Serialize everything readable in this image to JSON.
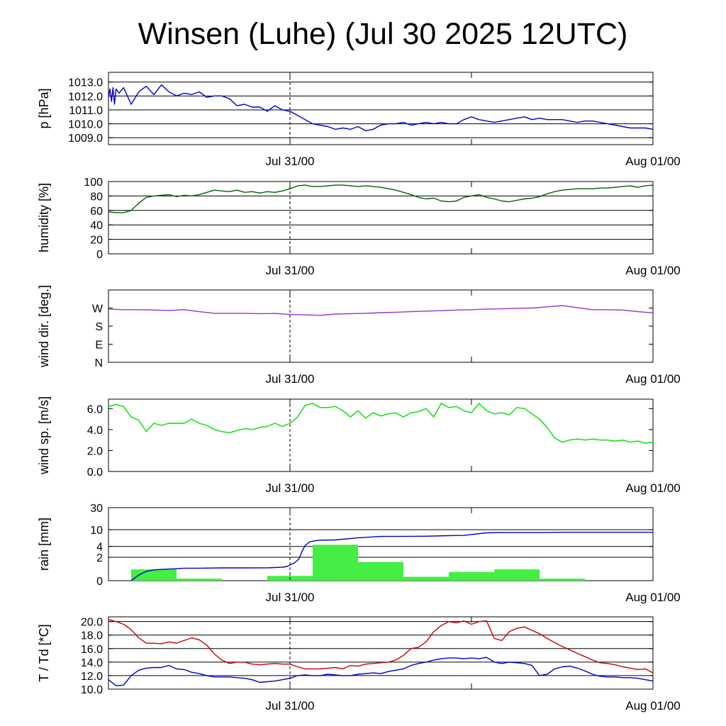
{
  "title": "Winsen (Luhe) (Jul 30 2025 12UTC)",
  "time_axis": {
    "range_hours": [
      0,
      36
    ],
    "ticks": [
      {
        "hour": 12,
        "label": "Jul 31/00"
      },
      {
        "hour": 36,
        "label": "Aug 01/00"
      }
    ],
    "minor_ticks_hours": [
      24
    ],
    "marker_hour": 12
  },
  "chart_data": [
    {
      "type": "line",
      "ylabel": "p [hPa]",
      "ylim": [
        1008.5,
        1013.7
      ],
      "yticks": [
        1009.0,
        1010.0,
        1011.0,
        1012.0,
        1013.0
      ],
      "ytick_labels": [
        "1009.0",
        "1010.0",
        "1011.0",
        "1012.0",
        "1013.0"
      ],
      "grid": true,
      "series": [
        {
          "color": "#0000cc",
          "x": [
            0,
            0.1,
            0.2,
            0.3,
            0.4,
            0.5,
            0.7,
            1.0,
            1.5,
            2.0,
            2.5,
            3.0,
            3.5,
            4.0,
            4.5,
            5.0,
            5.5,
            6.0,
            6.5,
            7.0,
            7.5,
            8.0,
            8.5,
            9.0,
            9.5,
            10.0,
            10.5,
            11.0,
            11.5,
            12.0,
            12.5,
            13.0,
            13.5,
            14.0,
            14.5,
            15.0,
            15.5,
            16.0,
            16.5,
            17.0,
            17.5,
            18.0,
            18.5,
            19.0,
            19.5,
            20.0,
            20.5,
            21.0,
            21.5,
            22.0,
            22.5,
            23.0,
            23.5,
            24.0,
            24.5,
            25.0,
            25.5,
            26.0,
            26.5,
            27.0,
            27.5,
            28.0,
            28.5,
            29.0,
            29.5,
            30.0,
            30.5,
            31.0,
            31.5,
            32.0,
            32.5,
            33.0,
            33.5,
            34.0,
            34.5,
            35.0,
            35.5,
            36.0
          ],
          "y": [
            1011.9,
            1012.5,
            1011.6,
            1012.6,
            1011.4,
            1012.5,
            1012.2,
            1012.6,
            1011.4,
            1012.3,
            1012.7,
            1012.1,
            1012.8,
            1012.3,
            1012.0,
            1012.2,
            1012.1,
            1012.3,
            1011.9,
            1012.0,
            1012.0,
            1011.8,
            1011.3,
            1011.4,
            1011.2,
            1011.2,
            1010.9,
            1011.3,
            1011.0,
            1010.9,
            1010.6,
            1010.3,
            1010.0,
            1009.9,
            1009.8,
            1009.6,
            1009.7,
            1009.6,
            1009.8,
            1009.5,
            1009.6,
            1009.9,
            1010.0,
            1010.0,
            1010.1,
            1009.9,
            1010.0,
            1010.1,
            1010.0,
            1010.1,
            1010.0,
            1010.0,
            1010.3,
            1010.5,
            1010.3,
            1010.2,
            1010.1,
            1010.2,
            1010.3,
            1010.4,
            1010.5,
            1010.3,
            1010.4,
            1010.3,
            1010.3,
            1010.3,
            1010.2,
            1010.1,
            1010.2,
            1010.2,
            1010.1,
            1010.0,
            1009.9,
            1009.8,
            1009.7,
            1009.7,
            1009.7,
            1009.6
          ]
        }
      ]
    },
    {
      "type": "line",
      "ylabel": "humidity [%]",
      "ylim": [
        0,
        100
      ],
      "yticks": [
        0,
        20,
        40,
        60,
        80,
        100
      ],
      "ytick_labels": [
        "0",
        "20",
        "40",
        "60",
        "80",
        "100"
      ],
      "grid": true,
      "series": [
        {
          "color": "#006400",
          "x": [
            0,
            0.5,
            1.0,
            1.5,
            2.0,
            2.5,
            3.0,
            3.5,
            4.0,
            4.5,
            5.0,
            5.5,
            6.0,
            6.5,
            7.0,
            7.5,
            8.0,
            8.5,
            9.0,
            9.5,
            10.0,
            10.5,
            11.0,
            11.5,
            12.0,
            12.5,
            13.0,
            13.5,
            14.0,
            14.5,
            15.0,
            15.5,
            16.0,
            16.5,
            17.0,
            17.5,
            18.0,
            18.5,
            19.0,
            19.5,
            20.0,
            20.5,
            21.0,
            21.5,
            22.0,
            22.5,
            23.0,
            23.5,
            24.0,
            24.5,
            25.0,
            25.5,
            26.0,
            26.5,
            27.0,
            27.5,
            28.0,
            28.5,
            29.0,
            29.5,
            30.0,
            30.5,
            31.0,
            31.5,
            32.0,
            32.5,
            33.0,
            33.5,
            34.0,
            34.5,
            35.0,
            35.5,
            36.0
          ],
          "y": [
            58,
            57,
            57,
            60,
            70,
            78,
            80,
            81,
            82,
            79,
            81,
            80,
            82,
            85,
            88,
            87,
            86,
            88,
            85,
            86,
            84,
            86,
            85,
            87,
            90,
            94,
            95,
            93,
            93,
            94,
            95,
            95,
            94,
            93,
            94,
            93,
            92,
            90,
            88,
            85,
            82,
            78,
            76,
            77,
            73,
            72,
            73,
            78,
            80,
            82,
            78,
            76,
            73,
            72,
            74,
            76,
            77,
            79,
            83,
            86,
            88,
            89,
            90,
            90,
            90,
            91,
            91,
            92,
            93,
            94,
            92,
            94,
            95
          ]
        }
      ]
    },
    {
      "type": "line",
      "ylabel": "wind dir. [deg.]",
      "ylim": [
        0,
        360
      ],
      "yticks": [
        0,
        90,
        180,
        270
      ],
      "ytick_labels": [
        "N",
        "E",
        "S",
        "W"
      ],
      "grid": false,
      "series": [
        {
          "color": "#9933cc",
          "x": [
            0,
            1,
            2,
            3,
            4,
            5,
            6,
            7,
            8,
            9,
            10,
            11,
            12,
            13,
            14,
            15,
            16,
            17,
            18,
            19,
            20,
            21,
            22,
            23,
            24,
            25,
            26,
            27,
            28,
            29,
            30,
            31,
            32,
            33,
            34,
            35,
            36
          ],
          "y": [
            265,
            262,
            262,
            260,
            258,
            262,
            252,
            244,
            244,
            244,
            242,
            243,
            238,
            236,
            234,
            240,
            242,
            244,
            247,
            249,
            252,
            255,
            257,
            260,
            262,
            265,
            266,
            269,
            270,
            276,
            282,
            272,
            262,
            262,
            260,
            252,
            246
          ]
        }
      ]
    },
    {
      "type": "line",
      "ylabel": "wind sp. [m/s]",
      "ylim": [
        0,
        6.9
      ],
      "yticks": [
        0.0,
        2.0,
        4.0,
        6.0
      ],
      "ytick_labels": [
        "0.0",
        "2.0",
        "4.0",
        "6.0"
      ],
      "grid": false,
      "series": [
        {
          "color": "#00e000",
          "x": [
            0,
            0.5,
            1.0,
            1.5,
            2.0,
            2.5,
            3.0,
            3.5,
            4.0,
            4.5,
            5.0,
            5.5,
            6.0,
            6.5,
            7.0,
            7.5,
            8.0,
            8.5,
            9.0,
            9.5,
            10.0,
            10.5,
            11.0,
            11.5,
            12.0,
            12.5,
            13.0,
            13.5,
            14.0,
            14.5,
            15.0,
            15.5,
            16.0,
            16.5,
            17.0,
            17.5,
            18.0,
            18.5,
            19.0,
            19.5,
            20.0,
            20.5,
            21.0,
            21.5,
            22.0,
            22.5,
            23.0,
            23.5,
            24.0,
            24.5,
            25.0,
            25.5,
            26.0,
            26.5,
            27.0,
            27.5,
            28.0,
            28.5,
            29.0,
            29.5,
            30.0,
            30.5,
            31.0,
            31.5,
            32.0,
            32.5,
            33.0,
            33.5,
            34.0,
            34.5,
            35.0,
            35.5,
            36.0
          ],
          "y": [
            6.2,
            6.4,
            6.2,
            5.2,
            4.9,
            3.8,
            4.6,
            4.4,
            4.6,
            4.6,
            4.6,
            5.0,
            4.6,
            4.4,
            4.0,
            3.8,
            3.7,
            3.9,
            4.1,
            4.0,
            4.2,
            4.3,
            4.6,
            4.3,
            4.6,
            5.2,
            6.3,
            6.5,
            6.1,
            6.1,
            6.2,
            5.8,
            5.2,
            5.8,
            5.1,
            5.6,
            5.3,
            5.5,
            5.6,
            5.2,
            5.6,
            5.7,
            6.0,
            5.2,
            6.5,
            6.1,
            6.2,
            5.8,
            5.6,
            6.5,
            5.8,
            5.5,
            5.6,
            5.4,
            6.1,
            6.0,
            5.5,
            5.0,
            4.2,
            3.2,
            2.8,
            3.0,
            3.1,
            3.0,
            3.1,
            3.0,
            3.0,
            2.9,
            3.0,
            2.8,
            2.9,
            2.7,
            2.8
          ]
        }
      ]
    },
    {
      "type": "bar",
      "ylabel": "rain [mm]",
      "scale": "log1p",
      "ylim": [
        0,
        30
      ],
      "yticks": [
        0,
        2,
        4,
        10,
        30
      ],
      "ytick_labels": [
        "0",
        "2",
        "4",
        "10",
        "30"
      ],
      "grid": true,
      "bars": [
        {
          "x0": 1.5,
          "x1": 4.5,
          "value": 0.7
        },
        {
          "x0": 4.5,
          "x1": 7.5,
          "value": 0.1
        },
        {
          "x0": 10.5,
          "x1": 13.5,
          "value": 0.25
        },
        {
          "x0": 13.5,
          "x1": 16.5,
          "value": 4.4
        },
        {
          "x0": 16.5,
          "x1": 19.5,
          "value": 1.4
        },
        {
          "x0": 19.5,
          "x1": 22.5,
          "value": 0.2
        },
        {
          "x0": 22.5,
          "x1": 25.5,
          "value": 0.5
        },
        {
          "x0": 25.5,
          "x1": 28.5,
          "value": 0.7
        },
        {
          "x0": 28.5,
          "x1": 31.5,
          "value": 0.1
        }
      ],
      "bar_color": "#44ee44",
      "series": [
        {
          "color": "#0000cc",
          "x": [
            1.5,
            2.0,
            2.5,
            3.0,
            3.5,
            4.5,
            5.0,
            6.0,
            7.5,
            9.0,
            10.5,
            11.0,
            11.5,
            11.8,
            12.0,
            12.3,
            12.6,
            12.8,
            13.0,
            13.3,
            13.6,
            14.0,
            15.0,
            16.5,
            18.0,
            19.5,
            21.0,
            22.5,
            23.5,
            25.0,
            26.0,
            28.5,
            30.0,
            32.0,
            34.0,
            36.0
          ],
          "y": [
            0,
            0.3,
            0.55,
            0.66,
            0.7,
            0.75,
            0.8,
            0.8,
            0.82,
            0.82,
            0.83,
            0.85,
            0.88,
            0.95,
            1.1,
            1.3,
            1.8,
            3.0,
            4.2,
            5.2,
            5.5,
            5.7,
            5.8,
            6.5,
            7.0,
            7.0,
            7.1,
            7.3,
            7.4,
            8.5,
            8.6,
            8.6,
            8.7,
            8.7,
            8.7,
            8.7
          ]
        }
      ]
    },
    {
      "type": "line",
      "ylabel": "T / Td [*C]",
      "ylim": [
        10.0,
        20.7
      ],
      "yticks": [
        10.0,
        12.0,
        14.0,
        16.0,
        18.0,
        20.0
      ],
      "ytick_labels": [
        "10.0",
        "12.0",
        "14.0",
        "16.0",
        "18.0",
        "20.0"
      ],
      "grid": true,
      "series": [
        {
          "color": "#cc0000",
          "x": [
            0,
            0.5,
            1.0,
            1.5,
            2.0,
            2.5,
            3.0,
            3.5,
            4.0,
            4.5,
            5.0,
            5.5,
            6.0,
            6.5,
            7.0,
            7.5,
            8.0,
            8.5,
            9.0,
            9.5,
            10.0,
            10.5,
            11.0,
            11.5,
            12.0,
            12.5,
            13.0,
            13.5,
            14.0,
            14.5,
            15.0,
            15.5,
            16.0,
            16.5,
            17.0,
            17.5,
            18.0,
            18.5,
            19.0,
            19.5,
            20.0,
            20.5,
            21.0,
            21.5,
            22.0,
            22.5,
            23.0,
            23.5,
            24.0,
            24.5,
            25.0,
            25.5,
            26.0,
            26.5,
            27.0,
            27.5,
            28.0,
            28.5,
            29.0,
            29.5,
            30.0,
            30.5,
            31.0,
            31.5,
            32.0,
            32.5,
            33.0,
            33.5,
            34.0,
            34.5,
            35.0,
            35.5,
            36.0
          ],
          "y": [
            20.3,
            20.0,
            19.6,
            18.8,
            17.6,
            16.8,
            16.8,
            16.7,
            17.0,
            16.8,
            17.2,
            17.6,
            17.3,
            16.5,
            15.2,
            14.3,
            13.8,
            14.0,
            14.0,
            13.7,
            13.6,
            13.7,
            13.8,
            13.7,
            13.7,
            13.3,
            13.0,
            13.0,
            13.0,
            13.1,
            13.2,
            13.0,
            13.5,
            13.4,
            13.7,
            13.8,
            13.9,
            14.0,
            14.3,
            15.0,
            16.0,
            16.2,
            17.0,
            18.5,
            19.4,
            20.0,
            19.8,
            20.1,
            19.6,
            20.0,
            20.1,
            17.5,
            17.2,
            18.5,
            19.0,
            19.2,
            18.7,
            18.2,
            17.5,
            16.9,
            16.3,
            15.8,
            15.3,
            14.8,
            14.3,
            13.9,
            13.8,
            13.6,
            13.3,
            13.1,
            12.9,
            13.0,
            12.4
          ]
        },
        {
          "color": "#0000cc",
          "x": [
            0,
            0.5,
            1.0,
            1.5,
            2.0,
            2.5,
            3.0,
            3.5,
            4.0,
            4.5,
            5.0,
            5.5,
            6.0,
            6.5,
            7.0,
            7.5,
            8.0,
            8.5,
            9.0,
            9.5,
            10.0,
            10.5,
            11.0,
            11.5,
            12.0,
            12.5,
            13.0,
            13.5,
            14.0,
            14.5,
            15.0,
            15.5,
            16.0,
            16.5,
            17.0,
            17.5,
            18.0,
            18.5,
            19.0,
            19.5,
            20.0,
            20.5,
            21.0,
            21.5,
            22.0,
            22.5,
            23.0,
            23.5,
            24.0,
            24.5,
            25.0,
            25.5,
            26.0,
            26.5,
            27.0,
            27.5,
            28.0,
            28.5,
            29.0,
            29.5,
            30.0,
            30.5,
            31.0,
            31.5,
            32.0,
            32.5,
            33.0,
            33.5,
            34.0,
            34.5,
            35.0,
            35.5,
            36.0
          ],
          "y": [
            11.4,
            10.5,
            10.6,
            12.0,
            12.8,
            13.1,
            13.2,
            13.2,
            13.5,
            13.0,
            12.9,
            12.5,
            12.3,
            12.0,
            11.8,
            11.8,
            11.8,
            11.7,
            11.6,
            11.4,
            11.0,
            11.1,
            11.2,
            11.4,
            11.6,
            12.0,
            12.1,
            12.0,
            12.0,
            12.2,
            12.1,
            12.0,
            12.0,
            12.2,
            12.3,
            12.4,
            12.3,
            12.6,
            12.8,
            13.0,
            13.5,
            13.8,
            14.0,
            14.3,
            14.5,
            14.6,
            14.6,
            14.5,
            14.6,
            14.5,
            14.7,
            14.0,
            13.8,
            14.0,
            13.9,
            13.8,
            13.5,
            12.0,
            12.2,
            13.0,
            13.3,
            13.4,
            13.1,
            12.7,
            12.2,
            11.9,
            11.8,
            11.8,
            11.7,
            11.7,
            11.6,
            11.4,
            11.2
          ]
        }
      ]
    }
  ]
}
